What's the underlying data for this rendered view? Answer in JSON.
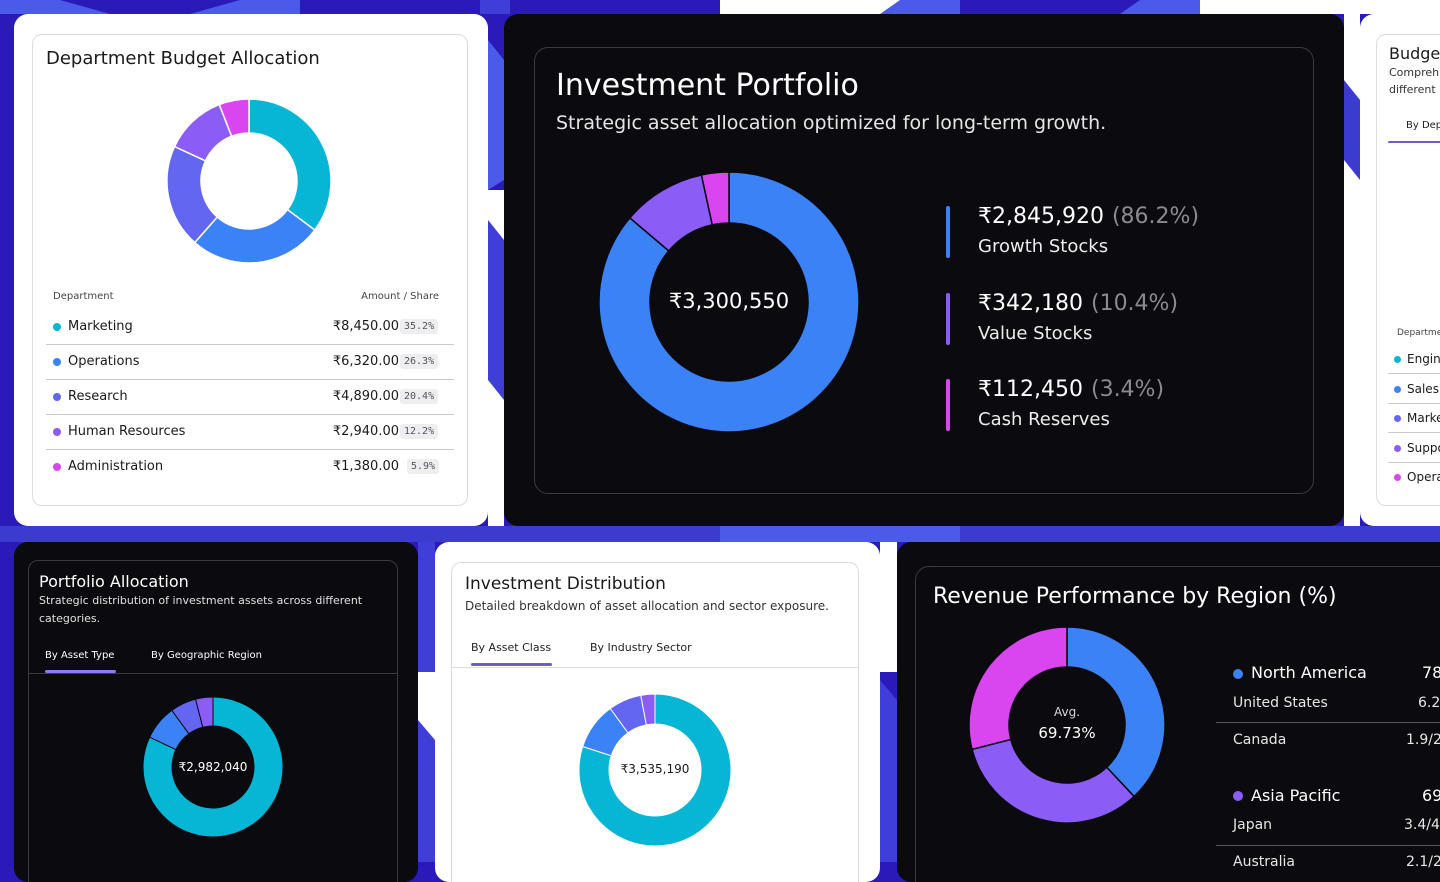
{
  "colors": {
    "cyan": "#06b6d4",
    "blue": "#3b82f6",
    "indigo": "#6366f1",
    "violet": "#8b5cf6",
    "magenta": "#d946ef",
    "background": "#2a1bb8"
  },
  "budget_card": {
    "title": "Department Budget Allocation",
    "col_department": "Department",
    "col_amount": "Amount / Share",
    "rows": [
      {
        "name": "Marketing",
        "amount": "₹8,450.00",
        "share": "35.2%"
      },
      {
        "name": "Operations",
        "amount": "₹6,320.00",
        "share": "26.3%"
      },
      {
        "name": "Research",
        "amount": "₹4,890.00",
        "share": "20.4%"
      },
      {
        "name": "Human Resources",
        "amount": "₹2,940.00",
        "share": "12.2%"
      },
      {
        "name": "Administration",
        "amount": "₹1,380.00",
        "share": "5.9%"
      }
    ]
  },
  "investment_card": {
    "title": "Investment Portfolio",
    "subtitle": "Strategic asset allocation optimized for long-term growth.",
    "total": "₹3,300,550",
    "items": [
      {
        "amount": "₹2,845,920",
        "share": "(86.2%)",
        "label": "Growth Stocks"
      },
      {
        "amount": "₹342,180",
        "share": "(10.4%)",
        "label": "Value Stocks"
      },
      {
        "amount": "₹112,450",
        "share": "(3.4%)",
        "label": "Cash Reserves"
      }
    ]
  },
  "budget_partial_card": {
    "title": "Budge",
    "subtitle_line1": "Compreh",
    "subtitle_line2": "different",
    "tab": "By Dep",
    "col_department": "Departme",
    "rows": [
      "Engin",
      "Sales",
      "Marke",
      "Suppo",
      "Opera"
    ]
  },
  "portfolio_card": {
    "title": "Portfolio Allocation",
    "subtitle_line1": "Strategic distribution of investment assets across different",
    "subtitle_line2": "categories.",
    "tabs": [
      "By Asset Type",
      "By Geographic Region"
    ],
    "total": "₹2,982,040"
  },
  "distribution_card": {
    "title": "Investment Distribution",
    "subtitle": "Detailed breakdown of asset allocation and sector exposure.",
    "tabs": [
      "By Asset Class",
      "By Industry Sector"
    ],
    "total": "₹3,535,190"
  },
  "revenue_card": {
    "title": "Revenue Performance by Region (%)",
    "center_label": "Avg.",
    "center_value": "69.73%",
    "regions": [
      {
        "name": "North America",
        "value": "78"
      },
      {
        "name": "Asia Pacific",
        "value": "69"
      }
    ],
    "sub_rows": [
      {
        "name": "United States",
        "value": "6.2"
      },
      {
        "name": "Canada",
        "value": "1.9/2"
      },
      {
        "name": "Japan",
        "value": "3.4/4"
      },
      {
        "name": "Australia",
        "value": "2.1/2"
      }
    ]
  },
  "chart_data": [
    {
      "type": "pie",
      "chart": "budget",
      "values": [
        35.2,
        26.3,
        20.4,
        12.2,
        5.9
      ],
      "categories": [
        "Marketing",
        "Operations",
        "Research",
        "Human Resources",
        "Administration"
      ]
    },
    {
      "type": "pie",
      "chart": "investment",
      "values": [
        86.2,
        10.4,
        3.4
      ],
      "categories": [
        "Growth Stocks",
        "Value Stocks",
        "Cash Reserves"
      ]
    },
    {
      "type": "pie",
      "chart": "revenue",
      "values": [
        38,
        33,
        29
      ]
    },
    {
      "type": "pie",
      "chart": "portfolio",
      "values": [
        82,
        8,
        6,
        4
      ]
    },
    {
      "type": "pie",
      "chart": "distribution",
      "values": [
        80,
        10,
        7,
        3
      ]
    }
  ]
}
